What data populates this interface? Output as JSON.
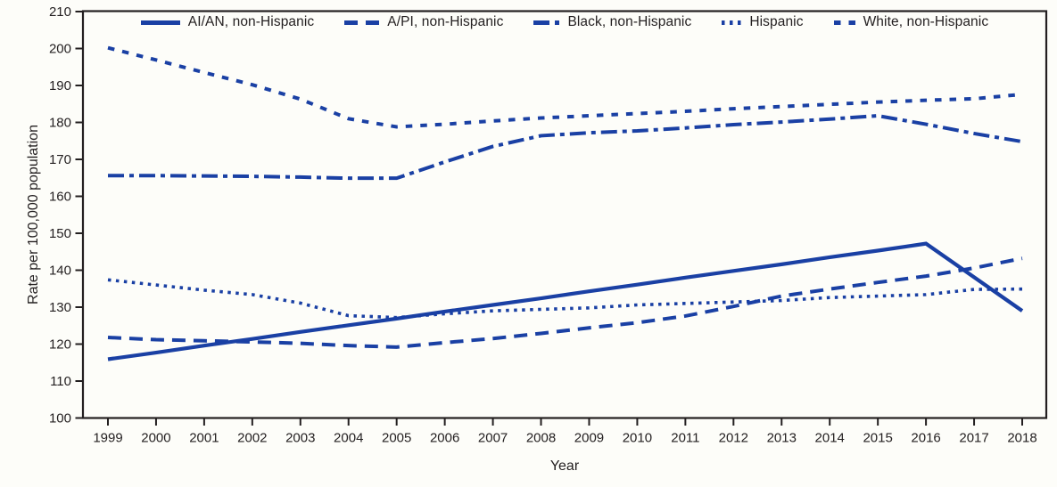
{
  "figure": {
    "background": "#fdfdf9",
    "axis_color": "#231f20",
    "line_color": "#1a40a4"
  },
  "chart_data": {
    "type": "line",
    "title": "",
    "xlabel": "Year",
    "ylabel": "Rate per 100,000 population",
    "ylim": [
      100,
      210
    ],
    "yticks": [
      100,
      110,
      120,
      130,
      140,
      150,
      160,
      170,
      180,
      190,
      200,
      210
    ],
    "x": [
      1999,
      2000,
      2001,
      2002,
      2003,
      2004,
      2005,
      2006,
      2007,
      2008,
      2009,
      2010,
      2011,
      2012,
      2013,
      2014,
      2015,
      2016,
      2017,
      2018
    ],
    "grid": false,
    "legend_position": "top-center",
    "series": [
      {
        "name": "AI/AN, non-Hispanic",
        "style": "solid",
        "values": [
          115.9,
          117.7,
          119.6,
          121.4,
          123.3,
          125.1,
          126.9,
          128.8,
          130.6,
          132.4,
          134.3,
          136.1,
          138.0,
          139.8,
          141.6,
          143.5,
          145.3,
          147.2,
          138.1,
          129.0
        ]
      },
      {
        "name": "A/PI, non-Hispanic",
        "style": "long-dash",
        "values": [
          121.8,
          121.2,
          120.9,
          120.6,
          120.2,
          119.6,
          119.2,
          120.4,
          121.5,
          122.9,
          124.4,
          125.8,
          127.6,
          130.2,
          133.0,
          134.9,
          136.7,
          138.4,
          140.6,
          143.2
        ]
      },
      {
        "name": "Black, non-Hispanic",
        "style": "dash-dot",
        "values": [
          165.6,
          165.6,
          165.5,
          165.4,
          165.2,
          164.9,
          164.9,
          169.3,
          173.5,
          176.4,
          177.2,
          177.7,
          178.5,
          179.4,
          180.1,
          180.9,
          181.8,
          179.5,
          177.0,
          174.8
        ]
      },
      {
        "name": "Hispanic",
        "style": "dotted",
        "values": [
          137.4,
          136.0,
          134.6,
          133.4,
          131.1,
          127.7,
          127.2,
          128.2,
          129.0,
          129.4,
          129.8,
          130.6,
          131.0,
          131.4,
          131.8,
          132.6,
          133.0,
          133.4,
          134.8,
          134.9
        ]
      },
      {
        "name": "White, non-Hispanic",
        "style": "short-dash",
        "values": [
          200.2,
          196.9,
          193.5,
          190.2,
          186.3,
          181.0,
          178.8,
          179.5,
          180.4,
          181.2,
          181.8,
          182.4,
          183.0,
          183.7,
          184.3,
          184.9,
          185.5,
          186.0,
          186.4,
          187.6
        ]
      }
    ]
  }
}
